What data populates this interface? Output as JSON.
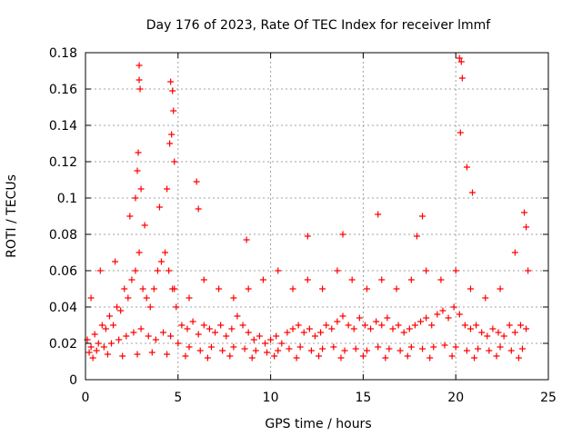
{
  "chart_data": {
    "type": "scatter",
    "title": "Day 176 of 2023, Rate Of TEC Index for receiver lmmf",
    "xlabel": "GPS time / hours",
    "ylabel": "ROTI / TECUs",
    "xlim": [
      0,
      25
    ],
    "ylim": [
      0,
      0.18
    ],
    "x_ticks": [
      {
        "value": 0,
        "label": "0"
      },
      {
        "value": 5,
        "label": "5"
      },
      {
        "value": 10,
        "label": "10"
      },
      {
        "value": 15,
        "label": "15"
      },
      {
        "value": 20,
        "label": "20"
      },
      {
        "value": 25,
        "label": "25"
      }
    ],
    "y_ticks": [
      {
        "value": 0,
        "label": "0"
      },
      {
        "value": 0.02,
        "label": "0.02"
      },
      {
        "value": 0.04,
        "label": "0.04"
      },
      {
        "value": 0.06,
        "label": "0.06"
      },
      {
        "value": 0.08,
        "label": "0.08"
      },
      {
        "value": 0.1,
        "label": "0.1"
      },
      {
        "value": 0.12,
        "label": "0.12"
      },
      {
        "value": 0.14,
        "label": "0.14"
      },
      {
        "value": 0.16,
        "label": "0.16"
      },
      {
        "value": 0.18,
        "label": "0.18"
      }
    ],
    "grid": true,
    "marker": "plus",
    "color": "#ff0000",
    "series": [
      {
        "x": [
          0.1,
          0.3,
          0.5,
          0.7,
          0.9,
          1.1,
          1.3,
          1.5,
          1.7,
          1.9,
          2.1,
          2.3,
          2.5,
          2.7,
          2.9,
          3.1,
          3.3,
          3.5,
          3.7,
          3.9,
          4.1,
          4.3,
          4.5,
          4.7,
          4.9,
          5.2,
          5.5,
          5.8,
          6.1,
          6.4,
          6.7,
          7.0,
          7.3,
          7.6,
          7.9,
          8.2,
          8.5,
          8.8,
          9.1,
          9.4,
          9.7,
          10.0,
          10.3,
          10.6,
          10.9,
          11.2,
          11.5,
          11.8,
          12.1,
          12.4,
          12.7,
          13.0,
          13.3,
          13.6,
          13.9,
          14.2,
          14.5,
          14.8,
          15.1,
          15.4,
          15.7,
          16.0,
          16.3,
          16.6,
          16.9,
          17.2,
          17.5,
          17.8,
          18.1,
          18.4,
          18.7,
          19.0,
          19.3,
          19.6,
          19.9,
          20.2,
          20.5,
          20.8,
          21.1,
          21.4,
          21.7,
          22.0,
          22.3,
          22.6,
          22.9,
          23.2,
          23.5,
          23.8,
          0.2,
          0.6,
          1.0,
          1.4,
          1.8,
          2.2,
          2.6,
          3.0,
          3.4,
          3.8,
          4.2,
          4.6,
          5.0,
          5.6,
          6.2,
          6.8,
          7.4,
          8.0,
          8.6,
          9.2,
          9.8,
          10.4,
          11.0,
          11.6,
          12.2,
          12.8,
          13.4,
          14.0,
          14.6,
          15.2,
          15.8,
          16.4,
          17.0,
          17.6,
          18.2,
          18.8,
          19.4,
          20.0,
          20.6,
          21.2,
          21.8,
          22.4,
          23.0,
          23.6,
          0.4,
          1.2,
          2.0,
          2.8,
          3.6,
          4.4,
          5.4,
          6.6,
          7.8,
          9.0,
          10.2,
          11.4,
          12.6,
          13.8,
          15.0,
          16.2,
          17.4,
          18.6,
          19.8,
          21.0,
          22.2,
          23.4,
          0.3,
          0.8,
          1.6,
          2.4,
          3.2,
          4.0,
          4.8,
          5.6,
          6.4,
          7.2,
          8.0,
          8.8,
          9.6,
          10.4,
          11.2,
          12.0,
          12.8,
          13.6,
          14.4,
          15.2,
          16.0,
          16.8,
          17.6,
          18.4,
          19.2,
          20.0,
          20.8,
          21.6,
          22.4,
          23.2,
          23.9,
          2.9,
          2.9,
          2.95,
          2.85,
          4.6,
          4.7,
          4.65,
          4.75,
          4.55,
          4.8,
          2.8,
          2.7,
          3.0,
          20.2,
          20.3,
          20.35,
          20.25,
          20.9,
          20.6,
          6.0,
          6.1,
          4.4,
          15.8,
          18.2,
          23.7,
          23.8,
          8.7,
          12.0,
          13.9,
          17.9
        ],
        "y": [
          0.022,
          0.018,
          0.025,
          0.02,
          0.03,
          0.028,
          0.035,
          0.03,
          0.04,
          0.038,
          0.05,
          0.045,
          0.055,
          0.06,
          0.07,
          0.05,
          0.045,
          0.04,
          0.05,
          0.06,
          0.065,
          0.07,
          0.06,
          0.05,
          0.04,
          0.03,
          0.028,
          0.032,
          0.025,
          0.03,
          0.028,
          0.026,
          0.03,
          0.024,
          0.028,
          0.035,
          0.03,
          0.026,
          0.022,
          0.024,
          0.02,
          0.022,
          0.024,
          0.02,
          0.026,
          0.028,
          0.03,
          0.026,
          0.028,
          0.024,
          0.026,
          0.03,
          0.028,
          0.032,
          0.035,
          0.03,
          0.028,
          0.034,
          0.03,
          0.028,
          0.032,
          0.03,
          0.034,
          0.028,
          0.03,
          0.026,
          0.028,
          0.03,
          0.032,
          0.034,
          0.03,
          0.036,
          0.038,
          0.034,
          0.04,
          0.036,
          0.03,
          0.028,
          0.03,
          0.026,
          0.024,
          0.028,
          0.026,
          0.024,
          0.03,
          0.026,
          0.03,
          0.028,
          0.015,
          0.016,
          0.018,
          0.02,
          0.022,
          0.024,
          0.026,
          0.028,
          0.024,
          0.022,
          0.026,
          0.024,
          0.02,
          0.018,
          0.016,
          0.018,
          0.016,
          0.018,
          0.017,
          0.016,
          0.015,
          0.016,
          0.017,
          0.018,
          0.016,
          0.017,
          0.018,
          0.016,
          0.017,
          0.016,
          0.018,
          0.017,
          0.016,
          0.018,
          0.017,
          0.018,
          0.019,
          0.018,
          0.016,
          0.017,
          0.016,
          0.018,
          0.016,
          0.017,
          0.012,
          0.014,
          0.013,
          0.014,
          0.015,
          0.014,
          0.013,
          0.012,
          0.013,
          0.012,
          0.013,
          0.012,
          0.013,
          0.012,
          0.013,
          0.012,
          0.013,
          0.012,
          0.013,
          0.012,
          0.013,
          0.012,
          0.045,
          0.06,
          0.065,
          0.09,
          0.085,
          0.095,
          0.05,
          0.045,
          0.055,
          0.05,
          0.045,
          0.05,
          0.055,
          0.06,
          0.05,
          0.055,
          0.05,
          0.06,
          0.055,
          0.05,
          0.055,
          0.05,
          0.055,
          0.06,
          0.055,
          0.06,
          0.05,
          0.045,
          0.05,
          0.07,
          0.06,
          0.173,
          0.165,
          0.16,
          0.125,
          0.164,
          0.159,
          0.135,
          0.148,
          0.13,
          0.12,
          0.115,
          0.1,
          0.105,
          0.177,
          0.175,
          0.166,
          0.136,
          0.103,
          0.117,
          0.109,
          0.094,
          0.105,
          0.091,
          0.09,
          0.092,
          0.084,
          0.077,
          0.079,
          0.08,
          0.079
        ]
      }
    ]
  }
}
